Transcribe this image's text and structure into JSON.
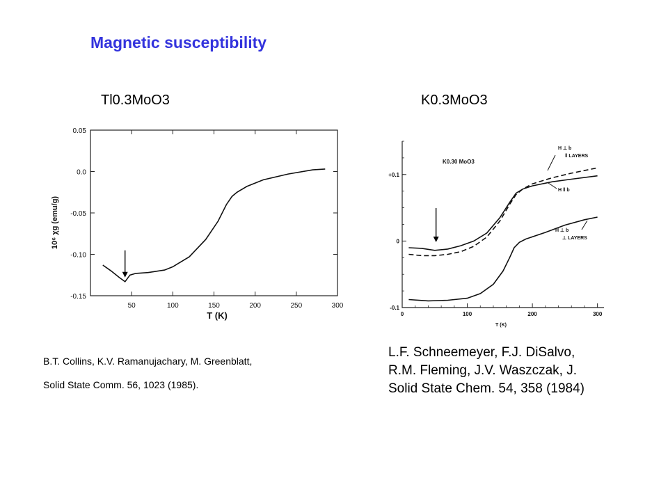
{
  "slide": {
    "title": "Magnetic susceptibility"
  },
  "chart_data": [
    {
      "type": "line",
      "title": "Tl0.3MoO3",
      "xlabel": "T (K)",
      "ylabel": "10⁶ χg (emu/g)",
      "xlim": [
        0,
        300
      ],
      "ylim": [
        -0.15,
        0.05
      ],
      "x_ticks": [
        "50",
        "100",
        "150",
        "200",
        "250",
        "300"
      ],
      "y_ticks": [
        "0.05",
        "0.0",
        "-0.05",
        "-0.10",
        "-0.15"
      ],
      "series": [
        {
          "x": [
            15,
            25,
            35,
            42,
            48,
            55,
            70,
            90,
            100,
            120,
            140,
            155,
            165,
            172,
            178,
            190,
            210,
            240,
            270,
            285
          ],
          "y": [
            -0.113,
            -0.12,
            -0.128,
            -0.133,
            -0.125,
            -0.123,
            -0.122,
            -0.119,
            -0.115,
            -0.103,
            -0.082,
            -0.06,
            -0.04,
            -0.03,
            -0.025,
            -0.018,
            -0.01,
            -0.003,
            0.002,
            0.003
          ]
        }
      ],
      "annotations": [
        {
          "type": "arrow",
          "x": 42,
          "y": -0.133
        }
      ]
    },
    {
      "type": "line",
      "title": "K0.3MoO3",
      "inset_label": "K0.30 MoO3",
      "xlabel": "T (K)",
      "xlim": [
        0,
        310
      ],
      "ylim": [
        -0.1,
        0.15
      ],
      "x_ticks": [
        "0",
        "100",
        "200",
        "300"
      ],
      "y_ticks": [
        "+0.1",
        "0",
        "-0.1"
      ],
      "series_labels": [
        {
          "text": "H ⊥ b ‖ LAYERS"
        },
        {
          "text": "H ‖ b"
        },
        {
          "text": "H ⊥ b ⊥ LAYERS"
        }
      ],
      "series": [
        {
          "name": "H ⊥ b ‖ LAYERS",
          "x": [
            10,
            30,
            50,
            70,
            90,
            110,
            130,
            150,
            165,
            175,
            185,
            200,
            230,
            260,
            300
          ],
          "y": [
            -0.02,
            -0.022,
            -0.022,
            -0.02,
            -0.016,
            -0.008,
            0.006,
            0.03,
            0.055,
            0.07,
            0.078,
            0.086,
            0.095,
            0.102,
            0.11
          ]
        },
        {
          "name": "H ‖ b",
          "x": [
            10,
            30,
            50,
            70,
            90,
            110,
            130,
            150,
            165,
            175,
            185,
            200,
            230,
            260,
            300
          ],
          "y": [
            -0.01,
            -0.011,
            -0.014,
            -0.012,
            -0.007,
            0.0,
            0.012,
            0.035,
            0.058,
            0.072,
            0.078,
            0.083,
            0.089,
            0.093,
            0.098
          ]
        },
        {
          "name": "H ⊥ b ⊥ LAYERS",
          "x": [
            10,
            40,
            70,
            100,
            120,
            140,
            155,
            165,
            172,
            180,
            190,
            220,
            250,
            280,
            300
          ],
          "y": [
            -0.088,
            -0.09,
            -0.089,
            -0.086,
            -0.079,
            -0.065,
            -0.045,
            -0.025,
            -0.01,
            -0.002,
            0.003,
            0.013,
            0.024,
            0.032,
            0.036
          ]
        }
      ],
      "annotations": [
        {
          "type": "arrow",
          "x": 52,
          "y": -0.008
        }
      ]
    }
  ],
  "citations": {
    "left": [
      "B.T. Collins, K.V. Ramanujachary, M. Greenblatt,",
      "Solid State Comm. 56, 1023 (1985)."
    ],
    "right": [
      "L.F. Schneemeyer, F.J. DiSalvo,",
      "R.M. Fleming, J.V. Waszczak, J.",
      "Solid State Chem. 54, 358 (1984)"
    ]
  }
}
